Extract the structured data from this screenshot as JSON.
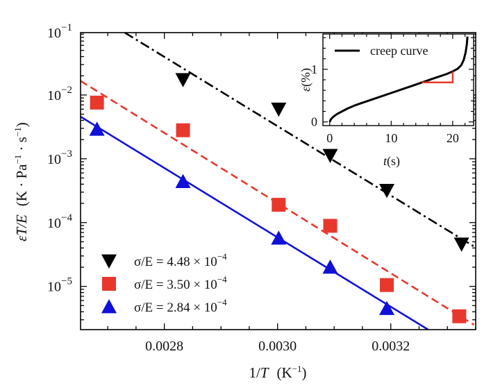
{
  "chart_data": {
    "type": "scatter",
    "title": "",
    "xlabel": "1/T (K^-1)",
    "xlabel_parts": {
      "pre": "1/",
      "var": "T",
      "unit_open": "(K",
      "unit_sup": "−1",
      "unit_close": ")"
    },
    "ylabel": "ε̇T/E (K·Pa^-1·s^-1)",
    "ylabel_parts": {
      "var": "ε̇T/E",
      "unit_a": "(K · Pa",
      "sup1": "−1",
      "unit_b": " · s",
      "sup2": "−1",
      "unit_close": ")"
    },
    "xscale": "linear",
    "yscale": "log",
    "xlim": [
      0.002652,
      0.00335
    ],
    "ylim": [
      2.1e-06,
      0.095
    ],
    "x_ticks": [
      {
        "value": 0.0028,
        "label": "0.0028"
      },
      {
        "value": 0.003,
        "label": "0.0030"
      },
      {
        "value": 0.0032,
        "label": "0.0032"
      }
    ],
    "y_ticks": [
      {
        "value": 0.1,
        "base": "10",
        "exp": "−1"
      },
      {
        "value": 0.01,
        "base": "10",
        "exp": "−2"
      },
      {
        "value": 0.001,
        "base": "10",
        "exp": "−3"
      },
      {
        "value": 0.0001,
        "base": "10",
        "exp": "−4"
      },
      {
        "value": 1e-05,
        "base": "10",
        "exp": "−5"
      }
    ],
    "grid": false,
    "legend_position": "bottom-left",
    "series": [
      {
        "name": "σ/E = 4.48 × 10^-4",
        "label_pre": "σ/E = 4.48 × 10",
        "label_exp": "−4",
        "marker": "triangle-down",
        "color": "#000000",
        "line_style": "dashdot",
        "x": [
          0.002833,
          0.003002,
          0.003093,
          0.003193,
          0.003325
        ],
        "y": [
          0.0174,
          0.006,
          0.00113,
          0.00032,
          4.6e-05
        ],
        "fit": {
          "x": [
            0.00273,
            0.00335
          ],
          "y": [
            0.095,
            4.07e-05
          ]
        }
      },
      {
        "name": "σ/E = 3.50 × 10^-4",
        "label_pre": "σ/E = 3.50 × 10",
        "label_exp": "−4",
        "marker": "square",
        "color": "#e8382c",
        "line_style": "dashed",
        "x": [
          0.002681,
          0.002833,
          0.003002,
          0.003093,
          0.003193,
          0.003321
        ],
        "y": [
          0.0076,
          0.0028,
          0.00019,
          8.9e-05,
          1.05e-05,
          3.4e-06
        ],
        "fit": {
          "x": [
            0.002652,
            0.003347
          ],
          "y": [
            0.0166,
            2.5e-06
          ]
        }
      },
      {
        "name": "σ/E = 2.84 × 10^-4",
        "label_pre": "σ/E = 2.84 × 10",
        "label_exp": "−4",
        "marker": "triangle-up",
        "color": "#1010d8",
        "line_style": "solid",
        "x": [
          0.002681,
          0.002833,
          0.003002,
          0.003093,
          0.003193
        ],
        "y": [
          0.0029,
          0.00044,
          5.7e-05,
          2e-05,
          4.5e-06
        ],
        "fit": {
          "x": [
            0.002652,
            0.003266
          ],
          "y": [
            0.00457,
            2.1e-06
          ]
        }
      }
    ],
    "inset": {
      "type": "line",
      "xlabel_var": "t",
      "xlabel_unit": "(s)",
      "ylabel_var": "ε",
      "ylabel_unit": "(%)",
      "xlim": [
        -1.1,
        23.4
      ],
      "ylim": [
        -0.07,
        1.67
      ],
      "x_ticks": [
        {
          "value": 0,
          "label": "0"
        },
        {
          "value": 10,
          "label": "10"
        },
        {
          "value": 20,
          "label": "20"
        }
      ],
      "y_ticks": [
        {
          "value": 0,
          "label": "0"
        },
        {
          "value": 1,
          "label": "1"
        }
      ],
      "legend": "creep curve",
      "curve_color": "#000000",
      "curve": {
        "x": [
          0,
          0.2,
          0.6,
          1.2,
          2,
          3,
          4,
          5,
          7,
          10,
          13,
          15,
          17,
          19,
          20,
          20.8,
          21.4,
          21.8,
          22.1,
          22.3,
          22.4
        ],
        "y": [
          0,
          0.05,
          0.1,
          0.15,
          0.2,
          0.26,
          0.31,
          0.35,
          0.43,
          0.55,
          0.67,
          0.75,
          0.83,
          0.91,
          0.96,
          1.01,
          1.08,
          1.18,
          1.32,
          1.48,
          1.62
        ]
      },
      "slope_triangle": {
        "color": "#e8382c",
        "x": [
          15,
          20,
          20
        ],
        "y": [
          0.75,
          0.75,
          0.96
        ]
      }
    }
  }
}
